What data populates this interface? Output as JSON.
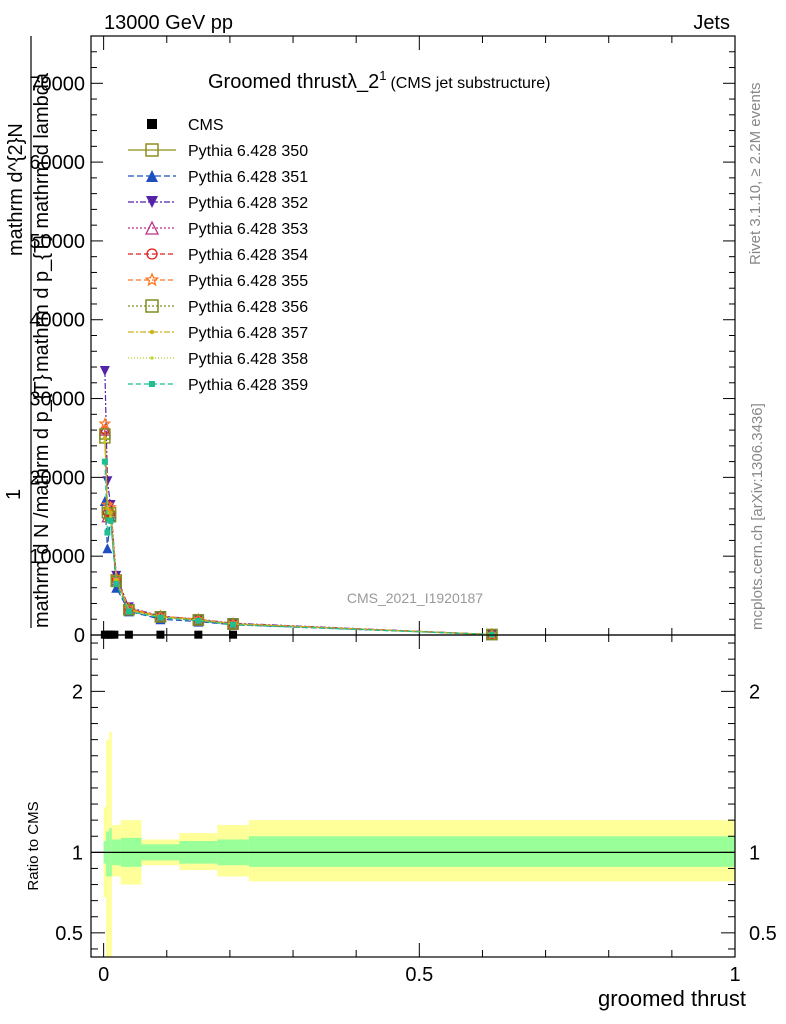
{
  "header": {
    "energy_label": "13000 GeV pp",
    "process_label": "Jets"
  },
  "side_labels": {
    "rivet": "Rivet 3.1.10, ≥ 2.2M events",
    "mcplots": "mcplots.cern.ch [arXiv:1306.3436]"
  },
  "watermark": "CMS_2021_I1920187",
  "chart_data": [
    {
      "type": "line",
      "title": "Groomed thrust",
      "title_symbol": "λ_2",
      "title_sup": "1",
      "subtitle": "(CMS jet substructure)",
      "ylabel_parts": [
        "mathrm d N",
        "mathrm d p_T mathrm d lambda",
        "1",
        "mathrm d N / mathrm d p_T",
        "mathrm d p_T mathrm d p_T"
      ],
      "ylabel_lines": [
        "mathrm d^{2}N",
        "mathrm d p_{T} mathrm d lambda",
        "1",
        "mathrm d N /mathrm d p_{T}"
      ],
      "xlim": [
        -0.02,
        1.0
      ],
      "ylim": [
        0,
        76000
      ],
      "yticks": [
        {
          "v": 0,
          "label": "0"
        },
        {
          "v": 10000,
          "label": "10000"
        },
        {
          "v": 20000,
          "label": "20000"
        },
        {
          "v": 30000,
          "label": "30000"
        },
        {
          "v": 40000,
          "label": "40000"
        },
        {
          "v": 50000,
          "label": "50000"
        },
        {
          "v": 60000,
          "label": "60000"
        },
        {
          "v": 70000,
          "label": "70000"
        }
      ],
      "legend_position": "top-left",
      "cms": {
        "name": "CMS",
        "x": [
          0.002,
          0.006,
          0.011,
          0.017,
          0.04,
          0.09,
          0.15,
          0.205
        ],
        "y": [
          40,
          40,
          40,
          40,
          40,
          40,
          40,
          40
        ]
      },
      "series": [
        {
          "name": "Pythia 6.428 350",
          "color": "#8f8f1f",
          "dash": "",
          "marker": "square-open",
          "x": [
            0.002,
            0.006,
            0.011,
            0.02,
            0.04,
            0.09,
            0.15,
            0.205,
            0.615
          ],
          "y": [
            25000,
            16000,
            15500,
            7000,
            3200,
            2300,
            1900,
            1400,
            60
          ]
        },
        {
          "name": "Pythia 6.428 351",
          "color": "#1f4fbf",
          "dash": "6,3",
          "marker": "triangle-up-filled",
          "x": [
            0.002,
            0.006,
            0.011,
            0.02,
            0.04,
            0.09,
            0.15,
            0.205,
            0.615
          ],
          "y": [
            17000,
            11000,
            15000,
            6000,
            3000,
            2000,
            1700,
            1300,
            60
          ]
        },
        {
          "name": "Pythia 6.428 352",
          "color": "#5522aa",
          "dash": "6,2,2,2",
          "marker": "triangle-down-filled",
          "x": [
            0.002,
            0.006,
            0.011,
            0.02,
            0.04,
            0.09,
            0.15,
            0.205,
            0.615
          ],
          "y": [
            33500,
            19500,
            16500,
            7500,
            3500,
            2400,
            2000,
            1500,
            60
          ]
        },
        {
          "name": "Pythia 6.428 353",
          "color": "#bb3388",
          "dash": "2,2",
          "marker": "triangle-up-open",
          "x": [
            0.002,
            0.006,
            0.011,
            0.02,
            0.04,
            0.09,
            0.15,
            0.205,
            0.615
          ],
          "y": [
            26000,
            15000,
            15500,
            7000,
            3300,
            2300,
            1900,
            1400,
            60
          ]
        },
        {
          "name": "Pythia 6.428 354",
          "color": "#dd1f1f",
          "dash": "5,3",
          "marker": "circle-open",
          "x": [
            0.002,
            0.006,
            0.011,
            0.02,
            0.04,
            0.09,
            0.15,
            0.205,
            0.615
          ],
          "y": [
            26000,
            15500,
            15500,
            7000,
            3300,
            2300,
            1900,
            1400,
            60
          ]
        },
        {
          "name": "Pythia 6.428 355",
          "color": "#ff7722",
          "dash": "5,3",
          "marker": "star-open",
          "x": [
            0.002,
            0.006,
            0.011,
            0.02,
            0.04,
            0.09,
            0.15,
            0.205,
            0.615
          ],
          "y": [
            26800,
            16500,
            16200,
            7300,
            3400,
            2400,
            2000,
            1450,
            60
          ]
        },
        {
          "name": "Pythia 6.428 356",
          "color": "#7a8f1f",
          "dash": "2,2",
          "marker": "square-open",
          "x": [
            0.002,
            0.006,
            0.011,
            0.02,
            0.04,
            0.09,
            0.15,
            0.205,
            0.615
          ],
          "y": [
            25500,
            15500,
            15000,
            6800,
            3200,
            2300,
            1900,
            1400,
            60
          ]
        },
        {
          "name": "Pythia 6.428 357",
          "color": "#ccb21f",
          "dash": "6,2,2,2",
          "marker": "dot",
          "x": [
            0.002,
            0.006,
            0.011,
            0.02,
            0.04,
            0.09,
            0.15,
            0.205,
            0.615
          ],
          "y": [
            25000,
            16000,
            15500,
            7000,
            3200,
            2300,
            1900,
            1400,
            60
          ]
        },
        {
          "name": "Pythia 6.428 358",
          "color": "#b8d01f",
          "dash": "1,2",
          "marker": "dot-small",
          "x": [
            0.002,
            0.006,
            0.011,
            0.02,
            0.04,
            0.09,
            0.15,
            0.205,
            0.615
          ],
          "y": [
            24500,
            15500,
            15000,
            6900,
            3200,
            2300,
            1900,
            1400,
            60
          ]
        },
        {
          "name": "Pythia 6.428 359",
          "color": "#1fbf8f",
          "dash": "5,3",
          "marker": "square-filled-small",
          "x": [
            0.002,
            0.006,
            0.011,
            0.02,
            0.04,
            0.09,
            0.15,
            0.205,
            0.615
          ],
          "y": [
            22000,
            13000,
            14500,
            6500,
            3000,
            2200,
            1800,
            1300,
            60
          ]
        }
      ]
    },
    {
      "type": "area",
      "ylabel": "Ratio to CMS",
      "xlabel": "groomed thrust",
      "xlim": [
        -0.02,
        1.0
      ],
      "ylim": [
        0.35,
        2.35
      ],
      "xticks": [
        {
          "v": 0,
          "label": "0"
        },
        {
          "v": 0.5,
          "label": "0.5"
        },
        {
          "v": 1,
          "label": "1"
        }
      ],
      "yticks": [
        {
          "v": 0.5,
          "label": "0.5"
        },
        {
          "v": 1,
          "label": "1"
        },
        {
          "v": 2,
          "label": "2"
        }
      ],
      "reference_line": 1,
      "bands": [
        {
          "x0": 0.0,
          "x1": 0.004,
          "stat": [
            0.93,
            1.07
          ],
          "total": [
            0.72,
            1.28
          ]
        },
        {
          "x0": 0.004,
          "x1": 0.009,
          "stat": [
            0.85,
            1.13
          ],
          "total": [
            0.35,
            1.7
          ]
        },
        {
          "x0": 0.009,
          "x1": 0.013,
          "stat": [
            0.85,
            1.15
          ],
          "total": [
            0.35,
            1.75
          ]
        },
        {
          "x0": 0.013,
          "x1": 0.027,
          "stat": [
            0.92,
            1.08
          ],
          "total": [
            0.85,
            1.17
          ]
        },
        {
          "x0": 0.027,
          "x1": 0.06,
          "stat": [
            0.91,
            1.09
          ],
          "total": [
            0.8,
            1.2
          ]
        },
        {
          "x0": 0.06,
          "x1": 0.12,
          "stat": [
            0.95,
            1.05
          ],
          "total": [
            0.92,
            1.08
          ]
        },
        {
          "x0": 0.12,
          "x1": 0.18,
          "stat": [
            0.93,
            1.07
          ],
          "total": [
            0.89,
            1.12
          ]
        },
        {
          "x0": 0.18,
          "x1": 0.23,
          "stat": [
            0.92,
            1.08
          ],
          "total": [
            0.85,
            1.17
          ]
        },
        {
          "x0": 0.23,
          "x1": 1.0,
          "stat": [
            0.91,
            1.1
          ],
          "total": [
            0.82,
            1.2
          ]
        }
      ],
      "colors": {
        "stat": "#99ff99",
        "total": "#ffff99"
      }
    }
  ]
}
